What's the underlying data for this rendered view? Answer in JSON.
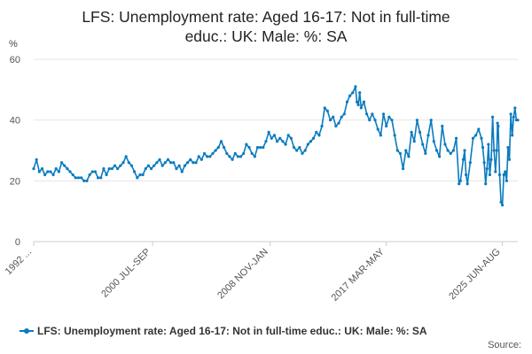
{
  "title_line1": "LFS: Unemployment rate: Aged 16-17: Not in full-time",
  "title_line2": "educ.: UK: Male: %: SA",
  "source_label": "Source:",
  "colors": {
    "series": "#0a7bbf",
    "grid": "#e5e5e5",
    "axis": "#cccccc"
  },
  "chart_data": {
    "type": "line",
    "y_unit": "%",
    "ylim": [
      0,
      60
    ],
    "y_ticks": [
      "0",
      "20",
      "40",
      "60"
    ],
    "x_range": [
      "1992 ...",
      "2025 JUN-AUG"
    ],
    "x_tick_labels": [
      "1992 ...",
      "2000 JUL-SEP",
      "2008 NOV-JAN",
      "2017 MAR-MAY",
      "2025 JUN-AUG"
    ],
    "x_tick_positions": [
      1992.0,
      2000.5,
      2008.9,
      2017.2,
      2025.5
    ],
    "grid": true,
    "legend_position": "bottom",
    "series": [
      {
        "name": "LFS: Unemployment rate: Aged 16-17: Not in full-time educ.: UK: Male: %: SA",
        "points": [
          [
            1992.0,
            24
          ],
          [
            1992.2,
            27
          ],
          [
            1992.4,
            23
          ],
          [
            1992.6,
            24
          ],
          [
            1992.8,
            22
          ],
          [
            1993.0,
            23
          ],
          [
            1993.2,
            23
          ],
          [
            1993.4,
            22
          ],
          [
            1993.6,
            24
          ],
          [
            1993.8,
            23
          ],
          [
            1994.0,
            26
          ],
          [
            1994.2,
            25
          ],
          [
            1994.4,
            24
          ],
          [
            1994.6,
            23
          ],
          [
            1994.8,
            22
          ],
          [
            1995.0,
            21
          ],
          [
            1995.2,
            21
          ],
          [
            1995.4,
            21
          ],
          [
            1995.6,
            20
          ],
          [
            1995.8,
            20
          ],
          [
            1996.0,
            22
          ],
          [
            1996.2,
            23
          ],
          [
            1996.4,
            23
          ],
          [
            1996.6,
            21
          ],
          [
            1996.8,
            21
          ],
          [
            1997.0,
            24
          ],
          [
            1997.2,
            22
          ],
          [
            1997.4,
            24
          ],
          [
            1997.6,
            24
          ],
          [
            1997.8,
            25
          ],
          [
            1998.0,
            24
          ],
          [
            1998.2,
            25
          ],
          [
            1998.4,
            26
          ],
          [
            1998.6,
            28
          ],
          [
            1998.8,
            26
          ],
          [
            1999.0,
            25
          ],
          [
            1999.2,
            23
          ],
          [
            1999.4,
            21
          ],
          [
            1999.6,
            22
          ],
          [
            1999.8,
            22
          ],
          [
            2000.0,
            24
          ],
          [
            2000.2,
            25
          ],
          [
            2000.4,
            24
          ],
          [
            2000.6,
            25
          ],
          [
            2000.8,
            26
          ],
          [
            2001.0,
            27
          ],
          [
            2001.2,
            25
          ],
          [
            2001.4,
            26
          ],
          [
            2001.6,
            27
          ],
          [
            2001.8,
            26
          ],
          [
            2002.0,
            26
          ],
          [
            2002.2,
            24
          ],
          [
            2002.4,
            25
          ],
          [
            2002.6,
            23
          ],
          [
            2002.8,
            25
          ],
          [
            2003.0,
            26
          ],
          [
            2003.2,
            27
          ],
          [
            2003.4,
            26
          ],
          [
            2003.6,
            26
          ],
          [
            2003.8,
            28
          ],
          [
            2004.0,
            27
          ],
          [
            2004.2,
            29
          ],
          [
            2004.4,
            28
          ],
          [
            2004.6,
            28
          ],
          [
            2004.8,
            29
          ],
          [
            2005.0,
            30
          ],
          [
            2005.2,
            31
          ],
          [
            2005.4,
            33
          ],
          [
            2005.6,
            31
          ],
          [
            2005.8,
            29
          ],
          [
            2006.0,
            28
          ],
          [
            2006.2,
            27
          ],
          [
            2006.4,
            29
          ],
          [
            2006.6,
            28
          ],
          [
            2006.8,
            28
          ],
          [
            2007.0,
            29
          ],
          [
            2007.2,
            32
          ],
          [
            2007.4,
            31
          ],
          [
            2007.6,
            29
          ],
          [
            2007.8,
            28
          ],
          [
            2008.0,
            31
          ],
          [
            2008.2,
            31
          ],
          [
            2008.4,
            31
          ],
          [
            2008.6,
            33
          ],
          [
            2008.8,
            36
          ],
          [
            2009.0,
            34
          ],
          [
            2009.2,
            35
          ],
          [
            2009.4,
            33
          ],
          [
            2009.6,
            34
          ],
          [
            2009.8,
            33
          ],
          [
            2010.0,
            32
          ],
          [
            2010.2,
            35
          ],
          [
            2010.4,
            34
          ],
          [
            2010.6,
            31
          ],
          [
            2010.8,
            30
          ],
          [
            2011.0,
            31
          ],
          [
            2011.2,
            29
          ],
          [
            2011.4,
            30
          ],
          [
            2011.6,
            32
          ],
          [
            2011.8,
            33
          ],
          [
            2012.0,
            34
          ],
          [
            2012.2,
            36
          ],
          [
            2012.4,
            35
          ],
          [
            2012.6,
            38
          ],
          [
            2012.8,
            44
          ],
          [
            2013.0,
            43
          ],
          [
            2013.2,
            40
          ],
          [
            2013.4,
            41
          ],
          [
            2013.6,
            38
          ],
          [
            2013.8,
            39
          ],
          [
            2014.0,
            41
          ],
          [
            2014.2,
            42
          ],
          [
            2014.4,
            46
          ],
          [
            2014.6,
            48
          ],
          [
            2014.8,
            49
          ],
          [
            2015.0,
            51
          ],
          [
            2015.1,
            46
          ],
          [
            2015.2,
            45
          ],
          [
            2015.3,
            49
          ],
          [
            2015.4,
            44
          ],
          [
            2015.6,
            46
          ],
          [
            2015.8,
            42
          ],
          [
            2016.0,
            40
          ],
          [
            2016.2,
            42
          ],
          [
            2016.4,
            40
          ],
          [
            2016.6,
            37
          ],
          [
            2016.8,
            35
          ],
          [
            2017.0,
            42
          ],
          [
            2017.2,
            38
          ],
          [
            2017.4,
            41
          ],
          [
            2017.6,
            40
          ],
          [
            2017.8,
            35
          ],
          [
            2018.0,
            30
          ],
          [
            2018.2,
            29
          ],
          [
            2018.4,
            24
          ],
          [
            2018.6,
            30
          ],
          [
            2018.8,
            28
          ],
          [
            2019.0,
            36
          ],
          [
            2019.2,
            33
          ],
          [
            2019.4,
            40
          ],
          [
            2019.6,
            36
          ],
          [
            2019.8,
            32
          ],
          [
            2020.0,
            29
          ],
          [
            2020.2,
            35
          ],
          [
            2020.4,
            40
          ],
          [
            2020.6,
            33
          ],
          [
            2020.8,
            30
          ],
          [
            2021.0,
            28
          ],
          [
            2021.2,
            38
          ],
          [
            2021.4,
            32
          ],
          [
            2021.6,
            30
          ],
          [
            2021.8,
            29
          ],
          [
            2022.0,
            30
          ],
          [
            2022.2,
            34
          ],
          [
            2022.4,
            19
          ],
          [
            2022.5,
            20
          ],
          [
            2022.7,
            27
          ],
          [
            2022.8,
            30
          ],
          [
            2022.9,
            22
          ],
          [
            2023.0,
            19
          ],
          [
            2023.2,
            26
          ],
          [
            2023.4,
            34
          ],
          [
            2023.6,
            35
          ],
          [
            2023.8,
            37
          ],
          [
            2024.0,
            34
          ],
          [
            2024.1,
            31
          ],
          [
            2024.2,
            26
          ],
          [
            2024.3,
            19
          ],
          [
            2024.4,
            24
          ],
          [
            2024.5,
            32
          ],
          [
            2024.6,
            22
          ],
          [
            2024.7,
            27
          ],
          [
            2024.8,
            41
          ],
          [
            2024.9,
            30
          ],
          [
            2025.0,
            23
          ],
          [
            2025.1,
            30
          ],
          [
            2025.15,
            39
          ],
          [
            2025.2,
            38
          ],
          [
            2025.3,
            22
          ],
          [
            2025.4,
            13
          ],
          [
            2025.5,
            12
          ],
          [
            2025.6,
            22
          ],
          [
            2025.7,
            23
          ],
          [
            2025.8,
            20
          ],
          [
            2025.9,
            31
          ],
          [
            2026.0,
            27
          ],
          [
            2026.1,
            42
          ],
          [
            2026.2,
            35
          ],
          [
            2026.3,
            41
          ],
          [
            2026.4,
            44
          ],
          [
            2026.5,
            40
          ],
          [
            2026.6,
            40
          ]
        ]
      }
    ]
  }
}
